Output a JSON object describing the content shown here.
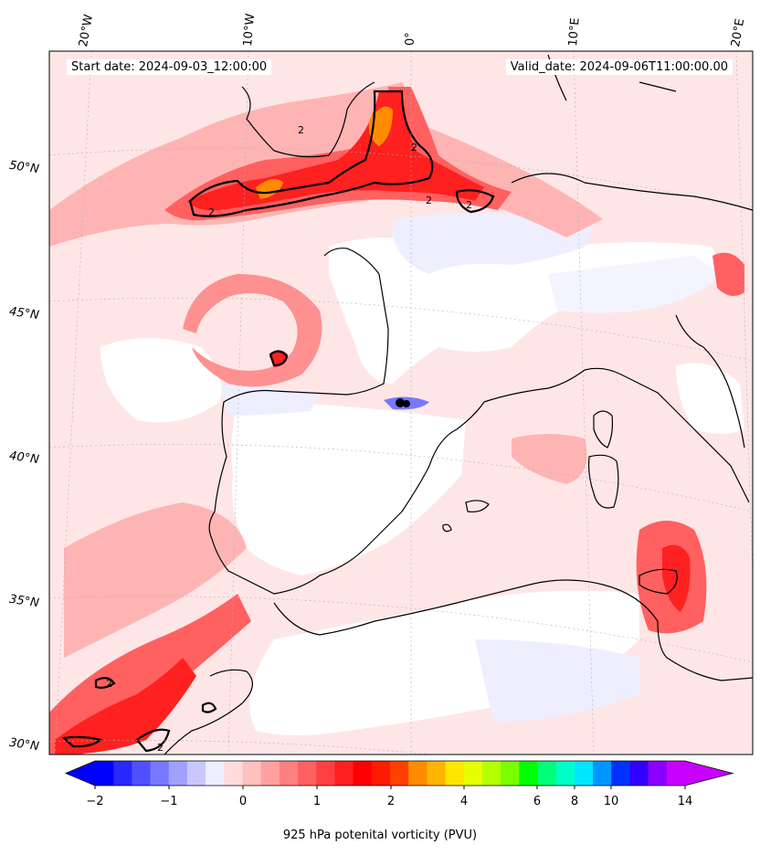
{
  "header": {
    "start": "Start date: 2024-09-03_12:00:00",
    "valid": "Valid_date: 2024-09-06T11:00:00.00"
  },
  "axes": {
    "lon_labels": [
      "20°W",
      "10°W",
      "0°",
      "10°E",
      "20°E"
    ],
    "lat_labels": [
      "50°N",
      "45°N",
      "40°N",
      "35°N",
      "30°N"
    ]
  },
  "contour_label": "2",
  "colorbar": {
    "label": "925 hPa potenital vorticity (PVU)",
    "ticks": [
      "−2",
      "−1",
      "0",
      "1",
      "2",
      "4",
      "6",
      "8",
      "10",
      "14"
    ],
    "colors": [
      "#0000ff",
      "#2828ff",
      "#5050ff",
      "#7878ff",
      "#a0a0ff",
      "#c8c8ff",
      "#eeeeff",
      "#ffdcdc",
      "#ffc0c0",
      "#ffa0a0",
      "#ff8080",
      "#ff6060",
      "#ff4040",
      "#ff2020",
      "#ff0000",
      "#ff1a00",
      "#ff4000",
      "#ff8c00",
      "#ffb400",
      "#ffe600",
      "#e6ff00",
      "#b4ff00",
      "#78ff00",
      "#00ff00",
      "#00ff78",
      "#00ffc8",
      "#00e6ff",
      "#0096ff",
      "#0032ff",
      "#3200ff",
      "#8c00ff",
      "#c800ff"
    ],
    "min_color": "#0000ff",
    "max_color": "#c800ff"
  },
  "colors": {
    "coastline": "#000000",
    "red_strong": "#ff2020",
    "red_mid": "#ff6060",
    "red_light": "#ffb4b4",
    "pink": "#ffdcdc",
    "blue_light": "#dcdcff",
    "orange": "#ff8c00"
  }
}
